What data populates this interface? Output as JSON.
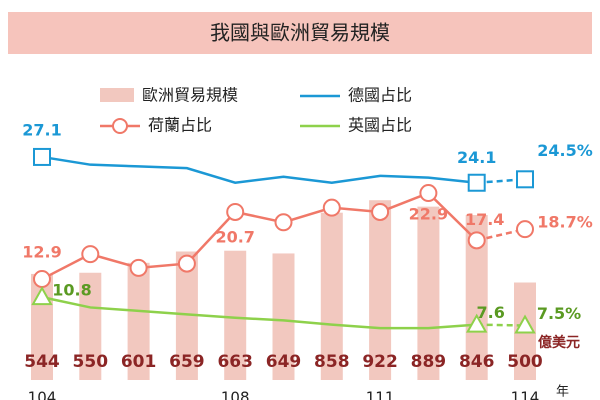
{
  "chart_data": {
    "type": "bar_line",
    "title": "我國與歐洲貿易規模",
    "categories": [
      "104",
      null,
      null,
      null,
      "108",
      null,
      null,
      "111",
      null,
      null,
      "114"
    ],
    "x_unit": "年",
    "bar_unit": "億美元",
    "bars": {
      "name": "歐洲貿易規模",
      "color": "#f2c8bf",
      "label_color": "#8b2525",
      "values": [
        544,
        550,
        601,
        659,
        663,
        649,
        858,
        922,
        889,
        846,
        500
      ]
    },
    "dashed_last_segment": true,
    "series": [
      {
        "name": "德國占比",
        "color": "#1b98d5",
        "marker": "square",
        "marker_indices": [
          0,
          9,
          10
        ],
        "values": [
          27.1,
          26.2,
          26.0,
          25.8,
          24.1,
          24.8,
          24.1,
          24.9,
          24.7,
          24.1,
          24.5
        ],
        "value_labels": [
          "27.1",
          null,
          null,
          null,
          null,
          null,
          null,
          null,
          null,
          "24.1",
          "24.5%"
        ]
      },
      {
        "name": "荷蘭占比",
        "color": "#f07868",
        "marker": "circle",
        "marker_indices": [
          0,
          1,
          2,
          3,
          4,
          5,
          6,
          7,
          8,
          9,
          10
        ],
        "values": [
          12.9,
          15.8,
          14.2,
          14.7,
          20.7,
          19.5,
          21.2,
          20.7,
          22.9,
          17.4,
          18.7
        ],
        "value_labels": [
          "12.9",
          null,
          null,
          null,
          "20.7",
          null,
          null,
          null,
          "22.9",
          "17.4",
          "18.7%"
        ]
      },
      {
        "name": "英國占比",
        "color": "#8ed14b",
        "label_color": "#5a9a22",
        "marker": "triangle",
        "marker_indices": [
          0,
          9,
          10
        ],
        "values": [
          10.8,
          9.6,
          9.2,
          8.8,
          8.4,
          8.1,
          7.6,
          7.2,
          7.2,
          7.6,
          7.5
        ],
        "value_labels": [
          "10.8",
          null,
          null,
          null,
          null,
          null,
          null,
          null,
          null,
          "7.6",
          "7.5%"
        ]
      }
    ]
  }
}
